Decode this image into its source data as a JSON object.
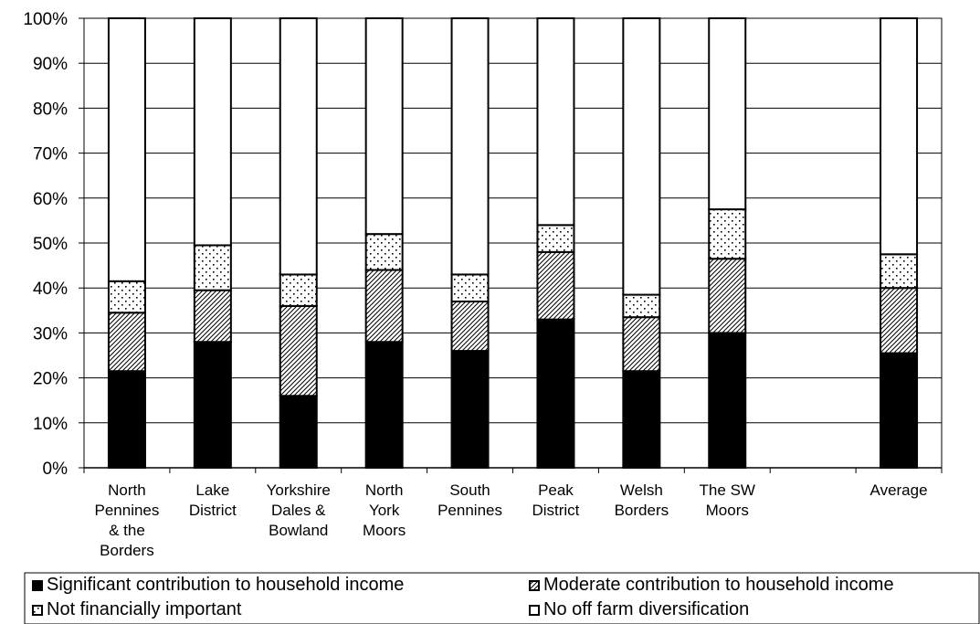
{
  "chart_data": {
    "type": "bar",
    "stacked": true,
    "percent": true,
    "title": "",
    "xlabel": "",
    "ylabel": "",
    "ylim": [
      0,
      100
    ],
    "yticks": [
      "0%",
      "10%",
      "20%",
      "30%",
      "40%",
      "50%",
      "60%",
      "70%",
      "80%",
      "90%",
      "100%"
    ],
    "grid": true,
    "legend_position": "bottom",
    "categories": [
      [
        "North",
        "Pennines",
        "& the",
        "Borders"
      ],
      [
        "Lake",
        "District"
      ],
      [
        "Yorkshire",
        "Dales &",
        "Bowland"
      ],
      [
        "North",
        "York",
        "Moors"
      ],
      [
        "South",
        "Pennines"
      ],
      [
        "Peak",
        "District"
      ],
      [
        "Welsh",
        "Borders"
      ],
      [
        "The SW",
        "Moors"
      ],
      [
        ""
      ],
      [
        "Average"
      ]
    ],
    "series": [
      {
        "name": "Significant contribution to household income",
        "pattern": "solid-black",
        "values": [
          21.5,
          28,
          16,
          28,
          26,
          33,
          21.5,
          30,
          null,
          25.5
        ]
      },
      {
        "name": "Moderate contribution to household income",
        "pattern": "diagonal-hatch",
        "values": [
          13,
          11.5,
          20,
          16,
          11,
          15,
          12,
          16.5,
          null,
          14.5
        ]
      },
      {
        "name": "Not financially important",
        "pattern": "dots",
        "values": [
          7,
          10,
          7,
          8,
          6,
          6,
          5,
          11,
          null,
          7.5
        ]
      },
      {
        "name": "No off farm diversification",
        "pattern": "white",
        "values": [
          58.5,
          50.5,
          57,
          48,
          57,
          46,
          61.5,
          42.5,
          null,
          52.5
        ]
      }
    ],
    "colors": {
      "solid": "#000000",
      "background": "#ffffff",
      "grid": "#000000"
    }
  }
}
